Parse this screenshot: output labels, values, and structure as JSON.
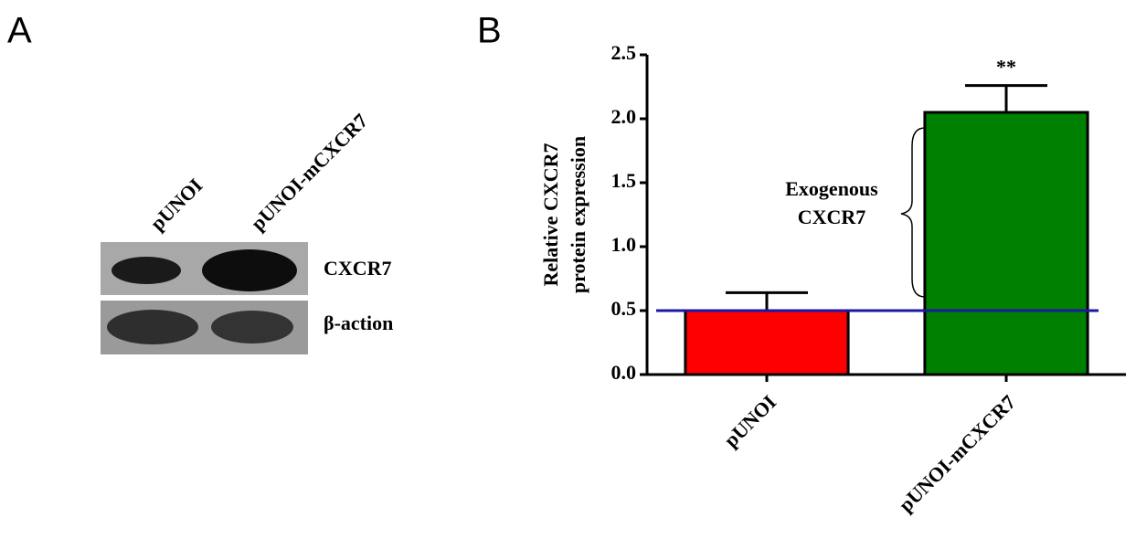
{
  "panel_a": {
    "label": "A",
    "lanes": [
      "pUNOI",
      "pUNOI-mCXCR7"
    ],
    "rows": [
      "CXCR7",
      "β-action"
    ]
  },
  "chart_data": {
    "type": "bar",
    "panel_label": "B",
    "y_label": [
      "Relative CXCR7",
      "protein expression"
    ],
    "categories": [
      "pUNOI",
      "pUNOI-mCXCR7"
    ],
    "values": [
      0.5,
      2.05
    ],
    "errors": [
      0.14,
      0.21
    ],
    "colors": [
      "#ff0000",
      "#008000"
    ],
    "ylim": [
      0,
      2.5
    ],
    "yticks": [
      {
        "value": 0,
        "label": "0.0"
      },
      0.5,
      {
        "value": 1,
        "label": "1.0"
      },
      1.5,
      {
        "value": 2,
        "label": "2.0"
      },
      2.5
    ],
    "reference_line": {
      "value": 0.5,
      "color": "#1a1aa0"
    },
    "significance": "**",
    "annotation": [
      "Exogenous",
      "CXCR7"
    ]
  }
}
